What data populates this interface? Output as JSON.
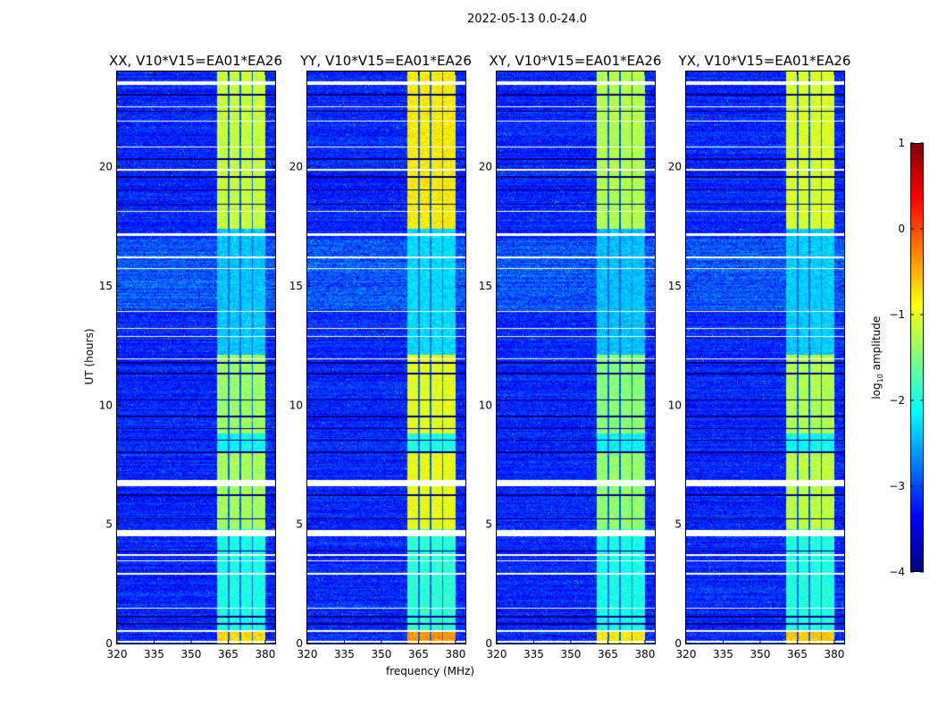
{
  "chart_data": {
    "type": "heatmap",
    "suptitle": "2022-05-13 0.0-24.0",
    "xlabel": "frequency (MHz)",
    "ylabel": "UT (hours)",
    "xlim": [
      320,
      384
    ],
    "ylim": [
      0,
      24
    ],
    "xticks": [
      "320",
      "335",
      "350",
      "365",
      "380"
    ],
    "xtick_values": [
      320,
      335,
      350,
      365,
      380
    ],
    "yticks": [
      "0",
      "5",
      "10",
      "15",
      "20"
    ],
    "ytick_values": [
      0,
      5,
      10,
      15,
      20
    ],
    "panels": [
      {
        "title": "XX, V10*V15=EA01*EA26",
        "band_boost": 0
      },
      {
        "title": "YY, V10*V15=EA01*EA26",
        "band_boost": 0.35
      },
      {
        "title": "XY, V10*V15=EA01*EA26",
        "band_boost": -0.1
      },
      {
        "title": "YX, V10*V15=EA01*EA26",
        "band_boost": 0.1
      }
    ],
    "signal_channels_mhz": [
      [
        360.5,
        365
      ],
      [
        365.6,
        369.5
      ],
      [
        370.1,
        374.5
      ],
      [
        375.1,
        380
      ]
    ],
    "signal_levels_log10": [
      {
        "hours": [
          0,
          0.5
        ],
        "level": -0.7
      },
      {
        "hours": [
          0.5,
          4.8
        ],
        "level": -2.0
      },
      {
        "hours": [
          4.8,
          8.0
        ],
        "level": -1.3
      },
      {
        "hours": [
          8.0,
          8.8
        ],
        "level": -2.1
      },
      {
        "hours": [
          8.8,
          12.1
        ],
        "level": -1.35
      },
      {
        "hours": [
          12.1,
          17.4
        ],
        "level": -2.4
      },
      {
        "hours": [
          17.4,
          24
        ],
        "level": -1.15
      }
    ],
    "background_log10": -3.2,
    "flagged_hours_white": [
      [
        23.45,
        23.6
      ],
      [
        22.5,
        22.55
      ],
      [
        21.9,
        21.95
      ],
      [
        20.8,
        20.85
      ],
      [
        19.82,
        19.9
      ],
      [
        18.1,
        18.15
      ],
      [
        17.1,
        17.2
      ],
      [
        16.15,
        16.25
      ],
      [
        15.7,
        15.75
      ],
      [
        13.9,
        13.95
      ],
      [
        13.2,
        13.25
      ],
      [
        12.85,
        12.9
      ],
      [
        11.92,
        11.97
      ],
      [
        6.6,
        6.85
      ],
      [
        4.5,
        4.75
      ],
      [
        3.68,
        3.75
      ],
      [
        3.45,
        3.5
      ],
      [
        2.9,
        2.95
      ],
      [
        1.45,
        1.5
      ],
      [
        0.5,
        0.55
      ],
      [
        0.05,
        0.1
      ]
    ],
    "flagged_hours_black": [
      [
        23.0,
        23.05
      ],
      [
        22.3,
        22.35
      ],
      [
        20.3,
        20.35
      ],
      [
        19.55,
        19.6
      ],
      [
        19.0,
        19.05
      ],
      [
        18.4,
        18.45
      ],
      [
        11.75,
        11.8
      ],
      [
        11.3,
        11.35
      ],
      [
        10.2,
        10.25
      ],
      [
        9.5,
        9.55
      ],
      [
        9.0,
        9.05
      ],
      [
        8.5,
        8.55
      ],
      [
        8.0,
        8.05
      ],
      [
        6.2,
        6.25
      ],
      [
        5.2,
        5.25
      ],
      [
        3.85,
        3.9
      ],
      [
        1.1,
        1.15
      ],
      [
        0.8,
        0.85
      ]
    ],
    "colorbar": {
      "label": "log10 amplitude",
      "label_main": "log",
      "label_sub": "10",
      "label_rest": " amplitude",
      "range": [
        -4,
        1
      ],
      "ticks": [
        "1",
        "0",
        "−1",
        "−2",
        "−3",
        "−4"
      ],
      "tick_values": [
        1,
        0,
        -1,
        -2,
        -3,
        -4
      ],
      "colormap": "jet"
    }
  }
}
